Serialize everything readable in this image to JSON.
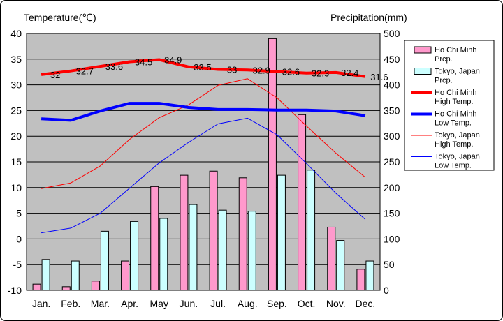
{
  "chart_data": {
    "type": "bar",
    "title": "",
    "left_axis_title": "Temperature(℃)",
    "right_axis_title": "Precipitation(mm)",
    "categories": [
      "Jan.",
      "Feb.",
      "Mar.",
      "Apr.",
      "May",
      "Jun.",
      "Jul.",
      "Aug.",
      "Sep.",
      "Oct.",
      "Nov.",
      "Dec."
    ],
    "y_left": {
      "min": -10,
      "max": 40,
      "step": 5,
      "ticks": [
        "40",
        "35",
        "30",
        "25",
        "20",
        "15",
        "10",
        "5",
        "0",
        "-5",
        "-10"
      ]
    },
    "y_right": {
      "min": 0,
      "max": 500,
      "step": 50,
      "ticks": [
        "500",
        "450",
        "400",
        "350",
        "300",
        "250",
        "200",
        "150",
        "100",
        "50",
        "0"
      ]
    },
    "grid": true,
    "legend_position": "right",
    "bar_series": [
      {
        "name_lines": [
          "Ho Chi Minh",
          "Prcp."
        ],
        "color": "#FF99CC",
        "values": [
          12,
          7,
          18,
          57,
          202,
          224,
          232,
          219,
          490,
          342,
          123,
          41
        ]
      },
      {
        "name_lines": [
          "Tokyo, Japan",
          "Prcp."
        ],
        "color": "#CCFFFF",
        "values": [
          60,
          57,
          115,
          134,
          140,
          167,
          156,
          154,
          224,
          234,
          97,
          57
        ]
      }
    ],
    "line_series": [
      {
        "name_lines": [
          "Ho Chi Minh",
          "High Temp."
        ],
        "color": "#FF0000",
        "width": 4,
        "values": [
          32,
          32.7,
          33.6,
          34.5,
          34.9,
          33.5,
          33,
          32.9,
          32.6,
          32.3,
          32.4,
          31.6
        ],
        "labels": [
          "32",
          "32.7",
          "33.6",
          "34.5",
          "34.9",
          "33.5",
          "33",
          "32.9",
          "32.6",
          "32.3",
          "32.4",
          "31.6"
        ]
      },
      {
        "name_lines": [
          "Ho Chi Minh",
          "Low Temp."
        ],
        "color": "#0000FF",
        "width": 4,
        "values": [
          23.4,
          23.1,
          24.9,
          26.4,
          26.4,
          25.6,
          25.2,
          25.2,
          25.1,
          25.1,
          24.9,
          24
        ]
      },
      {
        "name_lines": [
          "Tokyo, Japan",
          "High Temp."
        ],
        "color": "#FF0000",
        "width": 1,
        "values": [
          9.8,
          10.9,
          14.2,
          19.4,
          23.6,
          26.1,
          29.9,
          31.2,
          27.5,
          22,
          16.7,
          12
        ]
      },
      {
        "name_lines": [
          "Tokyo, Japan",
          "Low Temp."
        ],
        "color": "#0000FF",
        "width": 1,
        "values": [
          1.2,
          2.1,
          5,
          9.9,
          14.8,
          18.8,
          22.4,
          23.5,
          20.3,
          14.7,
          8.9,
          3.8
        ]
      }
    ]
  }
}
